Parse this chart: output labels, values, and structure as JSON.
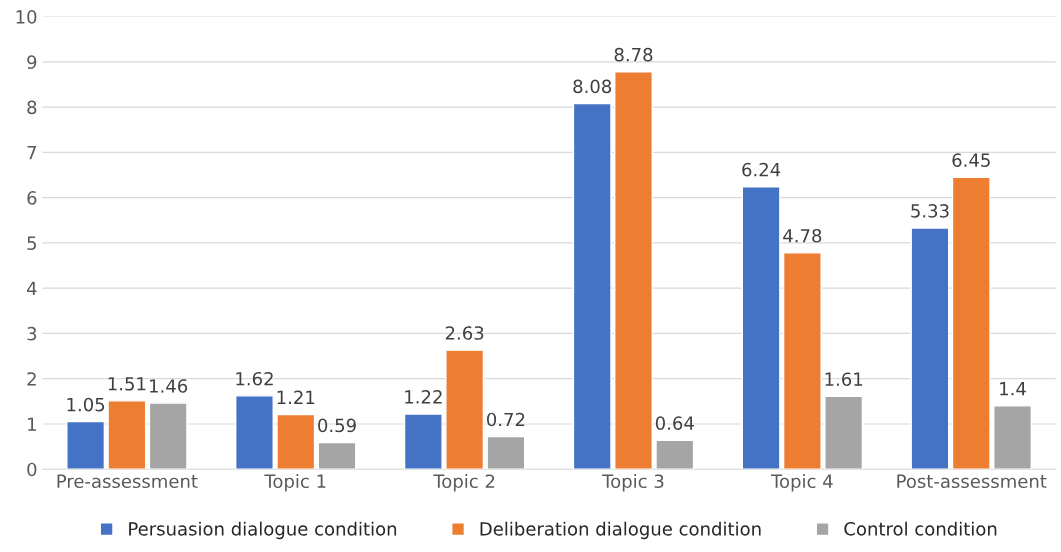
{
  "chart_data": {
    "type": "bar",
    "categories": [
      "Pre-assessment",
      "Topic 1",
      "Topic 2",
      "Topic 3",
      "Topic 4",
      "Post-assessment"
    ],
    "series": [
      {
        "name": "Persuasion dialogue condition",
        "color": "#4472c4",
        "values": [
          1.05,
          1.62,
          1.22,
          8.08,
          6.24,
          5.33
        ]
      },
      {
        "name": "Deliberation dialogue condition",
        "color": "#ed7d31",
        "values": [
          1.51,
          1.21,
          2.63,
          8.78,
          4.78,
          6.45
        ]
      },
      {
        "name": "Control condition",
        "color": "#a5a5a5",
        "values": [
          1.46,
          0.59,
          0.72,
          0.64,
          1.61,
          1.4
        ]
      }
    ],
    "ylim": [
      0,
      10
    ],
    "yticks": [
      0,
      1,
      2,
      3,
      4,
      5,
      6,
      7,
      8,
      9,
      10
    ],
    "grid": "y",
    "legend": "bottom",
    "data_labels": true
  }
}
